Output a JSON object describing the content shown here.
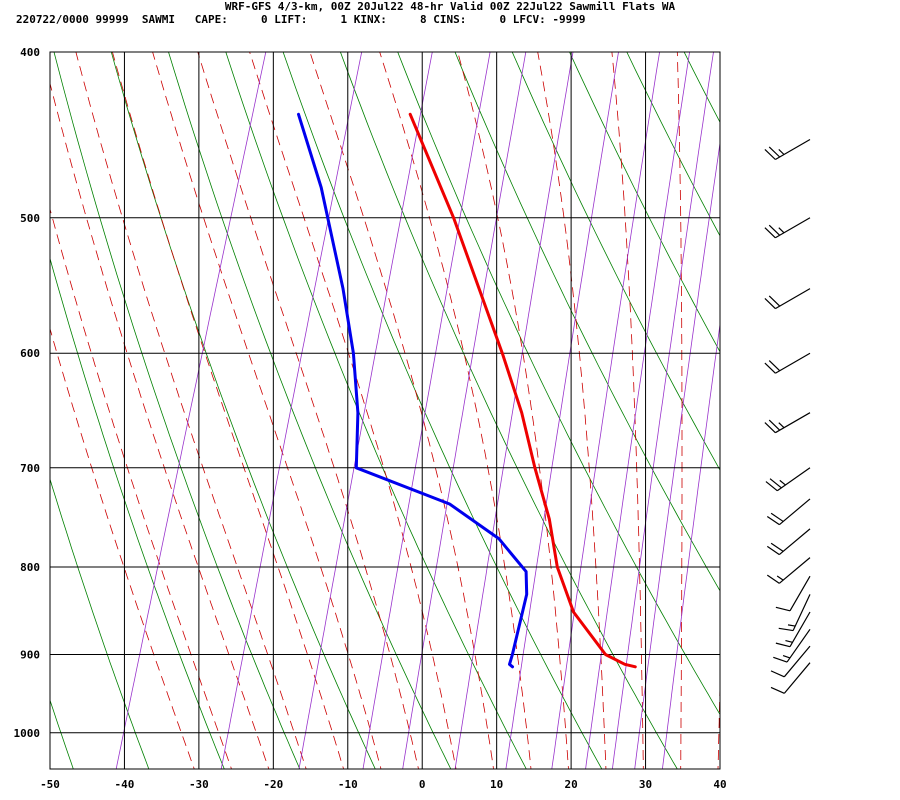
{
  "header": {
    "title": "WRF-GFS 4/3-km, 00Z 20Jul22 48-hr Valid 00Z 22Jul22 Sawmill Flats WA",
    "stats": "220722/0000 99999  SAWMI   CAPE:     0 LIFT:     1 KINX:     8 CINS:     0 LFCV: -9999"
  },
  "chart_data": {
    "type": "skew-t",
    "x_axis": {
      "unit": "°C",
      "range": [
        -50,
        40
      ],
      "ticks": [
        -50,
        -40,
        -30,
        -20,
        -10,
        0,
        10,
        20,
        30,
        40
      ],
      "tick_labels": [
        "-50",
        "-40",
        "-30",
        "-20",
        "-10",
        "0",
        "10",
        "20",
        "30",
        "40"
      ]
    },
    "y_axis": {
      "unit": "hPa",
      "scale": "log",
      "range": [
        400,
        1050
      ],
      "ticks": [
        400,
        500,
        600,
        700,
        800,
        900,
        1000
      ],
      "tick_labels": [
        "400",
        "500",
        "600",
        "700",
        "800",
        "900",
        "1000"
      ]
    },
    "grid": true,
    "temperature": {
      "color": "#ee0000",
      "points": [
        [
          435,
          -28
        ],
        [
          500,
          -18
        ],
        [
          600,
          -6
        ],
        [
          650,
          -1
        ],
        [
          700,
          3
        ],
        [
          750,
          7
        ],
        [
          800,
          10
        ],
        [
          850,
          14
        ],
        [
          900,
          20
        ],
        [
          912,
          23
        ],
        [
          915,
          24.5
        ]
      ]
    },
    "dewpoint": {
      "color": "#0000ee",
      "points": [
        [
          435,
          -43
        ],
        [
          480,
          -37
        ],
        [
          550,
          -30
        ],
        [
          600,
          -26
        ],
        [
          650,
          -23
        ],
        [
          700,
          -21
        ],
        [
          735,
          -7
        ],
        [
          770,
          1
        ],
        [
          805,
          6
        ],
        [
          830,
          7
        ],
        [
          900,
          7.5
        ],
        [
          912,
          7.5
        ],
        [
          915,
          8
        ]
      ]
    },
    "wind_barbs": [
      {
        "pressure": 450,
        "direction": 240,
        "speed_kt": 25
      },
      {
        "pressure": 500,
        "direction": 240,
        "speed_kt": 25
      },
      {
        "pressure": 550,
        "direction": 240,
        "speed_kt": 20
      },
      {
        "pressure": 600,
        "direction": 240,
        "speed_kt": 20
      },
      {
        "pressure": 650,
        "direction": 240,
        "speed_kt": 25
      },
      {
        "pressure": 700,
        "direction": 235,
        "speed_kt": 25
      },
      {
        "pressure": 730,
        "direction": 230,
        "speed_kt": 20
      },
      {
        "pressure": 760,
        "direction": 230,
        "speed_kt": 20
      },
      {
        "pressure": 790,
        "direction": 230,
        "speed_kt": 15
      },
      {
        "pressure": 810,
        "direction": 210,
        "speed_kt": 10
      },
      {
        "pressure": 830,
        "direction": 205,
        "speed_kt": 15
      },
      {
        "pressure": 850,
        "direction": 210,
        "speed_kt": 15
      },
      {
        "pressure": 870,
        "direction": 215,
        "speed_kt": 15
      },
      {
        "pressure": 890,
        "direction": 220,
        "speed_kt": 10
      },
      {
        "pressure": 910,
        "direction": 220,
        "speed_kt": 10
      }
    ],
    "background_colors": {
      "isotherms": "#000000",
      "dry_adiabats": "#008000",
      "moist_adiabats": "#cc0000",
      "mixing_ratio": "#9933cc"
    }
  }
}
